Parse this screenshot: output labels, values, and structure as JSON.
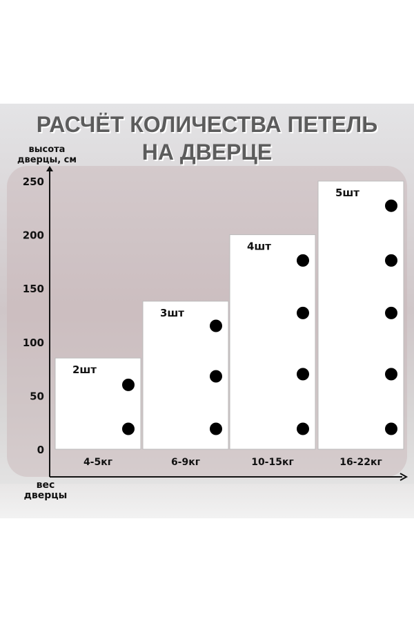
{
  "title_line1": "РАСЧЁТ КОЛИЧЕСТВА ПЕТЕЛЬ",
  "title_line2": "НА ДВЕРЦЕ",
  "chart_data": {
    "type": "bar",
    "ylabel": "высота дверцы, см",
    "xlabel": "вес дверцы",
    "ylim": [
      0,
      250
    ],
    "yticks": [
      0,
      50,
      100,
      150,
      200,
      250
    ],
    "categories": [
      "4-5кг",
      "6-9кг",
      "10-15кг",
      "16-22кг"
    ],
    "values": [
      85,
      138,
      200,
      250
    ],
    "bar_labels": [
      "2шт",
      "3шт",
      "4шт",
      "5шт"
    ],
    "hinge_positions": [
      [
        60,
        19
      ],
      [
        115,
        68,
        19
      ],
      [
        176,
        127,
        70,
        19
      ],
      [
        227,
        176,
        127,
        70,
        19
      ]
    ],
    "bar_color": "#ffffff",
    "hinge_color": "#000000",
    "grid": false
  }
}
